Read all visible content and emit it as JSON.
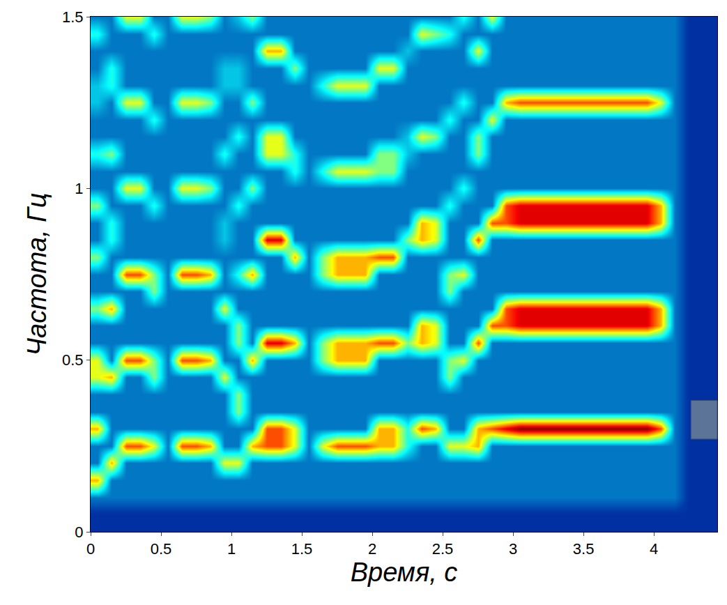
{
  "chart_data": {
    "type": "heatmap",
    "x_label": "Время, с",
    "y_label": "Частота, Гц",
    "xlim": [
      0,
      4.45
    ],
    "ylim": [
      0,
      1.5
    ],
    "xticks": [
      0,
      0.5,
      1,
      1.5,
      2,
      2.5,
      3,
      3.5,
      4
    ],
    "yticks": [
      0,
      0.5,
      1,
      1.5
    ],
    "grid": false,
    "zlim": [
      0,
      10
    ],
    "x": [
      0.05,
      0.15,
      0.25,
      0.35,
      0.45,
      0.55,
      0.65,
      0.75,
      0.85,
      0.95,
      1.05,
      1.15,
      1.25,
      1.35,
      1.45,
      1.55,
      1.65,
      1.75,
      1.85,
      1.95,
      2.05,
      2.15,
      2.25,
      2.35,
      2.45,
      2.55,
      2.65,
      2.75,
      2.85,
      2.95,
      3.05,
      3.15,
      3.25,
      3.35,
      3.45,
      3.55,
      3.65,
      3.75,
      3.85,
      3.95,
      4.05,
      4.15,
      4.25,
      4.35,
      4.45
    ],
    "y": [
      0,
      0.05,
      0.1,
      0.15,
      0.2,
      0.25,
      0.3,
      0.35,
      0.4,
      0.45,
      0.5,
      0.55,
      0.6,
      0.65,
      0.7,
      0.75,
      0.8,
      0.85,
      0.9,
      0.95,
      1,
      1.05,
      1.1,
      1.15,
      1.2,
      1.25,
      1.3,
      1.35,
      1.4,
      1.45,
      1.5
    ],
    "z": [
      [
        1,
        1,
        2,
        7,
        2,
        2,
        7,
        2,
        2,
        6,
        6,
        2,
        2,
        5,
        2,
        2,
        5,
        2,
        2,
        5,
        2,
        2,
        4,
        2,
        2,
        3,
        3,
        2,
        2,
        4,
        2
      ],
      [
        1,
        1,
        2,
        2,
        7,
        2,
        2,
        2,
        2,
        7,
        2,
        2,
        2,
        7,
        2,
        2,
        2,
        4,
        4,
        2,
        2,
        2,
        5,
        2,
        2,
        2,
        4,
        4,
        2,
        2,
        2
      ],
      [
        1,
        1,
        2,
        2,
        2,
        8,
        2,
        2,
        2,
        2,
        8,
        2,
        2,
        2,
        2,
        8,
        2,
        2,
        2,
        2,
        6,
        2,
        2,
        2,
        2,
        6,
        2,
        2,
        2,
        2,
        6
      ],
      [
        1,
        1,
        2,
        2,
        2,
        8,
        2,
        2,
        2,
        2,
        8,
        2,
        2,
        2,
        2,
        8,
        2,
        2,
        2,
        2,
        6,
        2,
        2,
        2,
        2,
        6,
        2,
        2,
        2,
        2,
        6
      ],
      [
        1,
        1,
        2,
        2,
        2,
        6,
        2,
        2,
        2,
        5,
        5,
        2,
        2,
        2,
        5,
        5,
        2,
        2,
        2,
        4,
        2,
        2,
        2,
        2,
        4,
        2,
        2,
        2,
        2,
        4,
        2
      ],
      [
        1,
        1,
        2,
        2,
        2,
        2,
        2,
        2,
        2,
        2,
        2,
        2,
        2,
        2,
        2,
        2,
        2,
        2,
        2,
        2,
        2,
        2,
        2,
        2,
        2,
        2,
        2,
        2,
        2,
        2,
        2
      ],
      [
        1,
        1,
        2,
        2,
        2,
        8,
        2,
        2,
        2,
        2,
        8,
        2,
        2,
        2,
        2,
        8,
        2,
        2,
        2,
        2,
        6,
        2,
        2,
        2,
        2,
        6,
        2,
        2,
        2,
        2,
        6
      ],
      [
        1,
        1,
        2,
        2,
        2,
        8,
        2,
        2,
        2,
        2,
        8,
        2,
        2,
        2,
        2,
        8,
        2,
        2,
        2,
        2,
        6,
        2,
        2,
        2,
        2,
        6,
        2,
        2,
        2,
        2,
        6
      ],
      [
        1,
        1,
        2,
        2,
        2,
        7,
        2,
        2,
        2,
        2,
        7,
        2,
        2,
        2,
        2,
        7,
        2,
        2,
        2,
        2,
        5,
        2,
        2,
        2,
        2,
        5,
        2,
        2,
        2,
        2,
        5
      ],
      [
        1,
        1,
        2,
        2,
        6,
        2,
        2,
        2,
        2,
        6,
        2,
        2,
        2,
        6,
        2,
        2,
        2,
        3,
        3,
        2,
        2,
        2,
        4,
        2,
        2,
        2,
        3,
        3,
        2,
        2,
        2
      ],
      [
        1,
        1,
        2,
        2,
        6,
        2,
        2,
        5,
        5,
        2,
        2,
        5,
        5,
        2,
        2,
        4,
        2,
        2,
        2,
        4,
        2,
        2,
        2,
        4,
        2,
        2,
        3,
        3,
        2,
        2,
        3
      ],
      [
        1,
        1,
        2,
        2,
        2,
        7,
        2,
        2,
        2,
        2,
        7,
        2,
        2,
        2,
        2,
        7,
        2,
        2,
        2,
        2,
        5,
        2,
        2,
        2,
        2,
        5,
        2,
        2,
        2,
        2,
        5
      ],
      [
        1,
        1,
        2,
        2,
        2,
        8,
        8,
        2,
        2,
        2,
        2,
        9,
        2,
        2,
        2,
        2,
        2,
        9,
        2,
        2,
        2,
        2,
        6,
        6,
        2,
        2,
        2,
        2,
        7,
        2,
        2
      ],
      [
        1,
        1,
        2,
        2,
        2,
        8,
        8,
        2,
        2,
        2,
        2,
        9,
        2,
        2,
        2,
        2,
        2,
        9,
        2,
        2,
        2,
        2,
        6,
        6,
        2,
        2,
        2,
        2,
        7,
        2,
        2
      ],
      [
        1,
        1,
        2,
        2,
        2,
        6,
        6,
        2,
        2,
        2,
        2,
        7,
        2,
        2,
        2,
        2,
        7,
        2,
        2,
        2,
        2,
        4,
        4,
        2,
        2,
        2,
        2,
        5,
        2,
        2,
        2
      ],
      [
        1,
        1,
        2,
        2,
        2,
        2,
        2,
        2,
        2,
        2,
        2,
        2,
        2,
        2,
        2,
        2,
        2,
        2,
        2,
        2,
        2,
        2,
        2,
        2,
        2,
        2,
        2,
        2,
        2,
        2,
        2
      ],
      [
        1,
        1,
        2,
        2,
        2,
        6,
        2,
        2,
        2,
        2,
        5,
        5,
        2,
        2,
        2,
        5,
        5,
        2,
        2,
        2,
        2,
        4,
        2,
        2,
        2,
        2,
        4,
        2,
        2,
        2,
        2
      ],
      [
        1,
        1,
        2,
        2,
        2,
        8,
        2,
        2,
        2,
        2,
        7,
        7,
        2,
        2,
        2,
        7,
        7,
        2,
        2,
        2,
        2,
        6,
        2,
        2,
        2,
        2,
        6,
        2,
        2,
        2,
        2
      ],
      [
        1,
        1,
        2,
        2,
        2,
        8,
        2,
        2,
        2,
        2,
        7,
        7,
        2,
        2,
        2,
        7,
        7,
        2,
        2,
        2,
        2,
        6,
        2,
        2,
        2,
        2,
        6,
        2,
        2,
        2,
        2
      ],
      [
        1,
        1,
        2,
        2,
        2,
        8,
        2,
        2,
        2,
        2,
        7,
        7,
        2,
        2,
        2,
        7,
        7,
        2,
        2,
        2,
        2,
        6,
        2,
        2,
        2,
        2,
        6,
        2,
        2,
        2,
        2
      ],
      [
        1,
        1,
        2,
        2,
        2,
        7,
        7,
        2,
        2,
        2,
        2,
        8,
        2,
        2,
        2,
        2,
        8,
        2,
        2,
        2,
        2,
        5,
        5,
        2,
        2,
        2,
        2,
        6,
        2,
        2,
        2
      ],
      [
        1,
        1,
        2,
        2,
        2,
        7,
        7,
        2,
        2,
        2,
        2,
        8,
        2,
        2,
        2,
        2,
        8,
        2,
        2,
        2,
        2,
        5,
        5,
        2,
        2,
        2,
        2,
        6,
        2,
        2,
        2
      ],
      [
        1,
        1,
        2,
        2,
        2,
        4,
        4,
        2,
        2,
        2,
        2,
        5,
        2,
        2,
        2,
        2,
        2,
        5,
        2,
        2,
        2,
        2,
        3,
        3,
        2,
        2,
        2,
        2,
        3,
        2,
        2
      ],
      [
        1,
        1,
        2,
        2,
        2,
        2,
        8,
        2,
        2,
        2,
        2,
        7,
        7,
        2,
        2,
        2,
        2,
        7,
        7,
        2,
        2,
        2,
        2,
        6,
        2,
        2,
        2,
        2,
        2,
        6,
        2
      ],
      [
        1,
        1,
        2,
        2,
        2,
        2,
        7,
        2,
        2,
        2,
        2,
        6,
        6,
        2,
        2,
        2,
        2,
        6,
        6,
        2,
        2,
        2,
        2,
        5,
        2,
        2,
        2,
        2,
        2,
        5,
        2
      ],
      [
        1,
        1,
        2,
        2,
        2,
        6,
        2,
        2,
        2,
        5,
        5,
        2,
        2,
        2,
        5,
        5,
        2,
        2,
        2,
        4,
        2,
        2,
        2,
        2,
        4,
        2,
        2,
        2,
        2,
        4,
        2
      ],
      [
        1,
        1,
        2,
        2,
        2,
        6,
        2,
        2,
        2,
        2,
        6,
        2,
        2,
        2,
        2,
        6,
        2,
        2,
        2,
        2,
        4,
        2,
        2,
        2,
        2,
        4,
        2,
        2,
        2,
        2,
        4
      ],
      [
        1,
        1,
        2,
        2,
        2,
        7,
        7,
        2,
        2,
        2,
        2,
        8,
        2,
        2,
        2,
        2,
        2,
        8,
        2,
        2,
        2,
        2,
        5,
        5,
        2,
        2,
        2,
        2,
        6,
        2,
        2
      ],
      [
        1,
        1,
        2,
        2,
        2,
        2,
        8,
        2,
        2,
        2,
        2,
        2,
        8,
        2,
        2,
        2,
        2,
        2,
        8,
        2,
        2,
        2,
        2,
        2,
        6,
        2,
        2,
        2,
        2,
        2,
        6
      ],
      [
        1,
        1,
        2,
        2,
        2,
        2,
        9,
        2,
        2,
        2,
        2,
        2,
        8,
        8,
        2,
        2,
        2,
        2,
        8,
        8,
        2,
        2,
        2,
        2,
        2,
        7,
        2,
        2,
        2,
        2,
        2
      ],
      [
        1,
        1,
        2,
        2,
        2,
        2,
        10,
        2,
        2,
        2,
        2,
        2,
        9,
        9,
        2,
        2,
        2,
        2,
        9,
        9,
        2,
        2,
        2,
        2,
        2,
        8,
        2,
        2,
        2,
        2,
        2
      ],
      [
        1,
        1,
        2,
        2,
        2,
        2,
        10,
        2,
        2,
        2,
        2,
        2,
        9,
        9,
        2,
        2,
        2,
        2,
        9,
        9,
        2,
        2,
        2,
        2,
        2,
        8,
        2,
        2,
        2,
        2,
        2
      ],
      [
        1,
        1,
        2,
        2,
        2,
        2,
        10,
        2,
        2,
        2,
        2,
        2,
        9,
        9,
        2,
        2,
        2,
        2,
        9,
        9,
        2,
        2,
        2,
        2,
        2,
        8,
        2,
        2,
        2,
        2,
        2
      ],
      [
        1,
        1,
        2,
        2,
        2,
        2,
        10,
        2,
        2,
        2,
        2,
        2,
        9,
        9,
        2,
        2,
        2,
        2,
        9,
        9,
        2,
        2,
        2,
        2,
        2,
        8,
        2,
        2,
        2,
        2,
        2
      ],
      [
        1,
        1,
        2,
        2,
        2,
        2,
        10,
        2,
        2,
        2,
        2,
        2,
        9,
        9,
        2,
        2,
        2,
        2,
        9,
        9,
        2,
        2,
        2,
        2,
        2,
        8,
        2,
        2,
        2,
        2,
        2
      ],
      [
        1,
        1,
        2,
        2,
        2,
        2,
        10,
        2,
        2,
        2,
        2,
        2,
        9,
        9,
        2,
        2,
        2,
        2,
        9,
        9,
        2,
        2,
        2,
        2,
        2,
        8,
        2,
        2,
        2,
        2,
        2
      ],
      [
        1,
        1,
        2,
        2,
        2,
        2,
        10,
        2,
        2,
        2,
        2,
        2,
        9,
        9,
        2,
        2,
        2,
        2,
        9,
        9,
        2,
        2,
        2,
        2,
        2,
        8,
        2,
        2,
        2,
        2,
        2
      ],
      [
        1,
        1,
        2,
        2,
        2,
        2,
        10,
        2,
        2,
        2,
        2,
        2,
        9,
        9,
        2,
        2,
        2,
        2,
        9,
        9,
        2,
        2,
        2,
        2,
        2,
        8,
        2,
        2,
        2,
        2,
        2
      ],
      [
        1,
        1,
        2,
        2,
        2,
        2,
        10,
        2,
        2,
        2,
        2,
        2,
        9,
        9,
        2,
        2,
        2,
        2,
        9,
        9,
        2,
        2,
        2,
        2,
        2,
        8,
        2,
        2,
        2,
        2,
        2
      ],
      [
        1,
        1,
        2,
        2,
        2,
        2,
        10,
        2,
        2,
        2,
        2,
        2,
        9,
        9,
        2,
        2,
        2,
        2,
        9,
        9,
        2,
        2,
        2,
        2,
        2,
        8,
        2,
        2,
        2,
        2,
        2
      ],
      [
        1,
        1,
        2,
        2,
        2,
        2,
        8,
        2,
        2,
        2,
        2,
        2,
        7,
        7,
        2,
        2,
        2,
        2,
        7,
        7,
        2,
        2,
        2,
        2,
        2,
        6,
        2,
        2,
        2,
        2,
        2
      ],
      [
        1,
        1,
        2,
        2,
        2,
        2,
        2,
        2,
        2,
        2,
        2,
        2,
        2,
        2,
        2,
        2,
        2,
        2,
        2,
        2,
        2,
        2,
        2,
        2,
        2,
        2,
        2,
        2,
        2,
        2,
        2
      ],
      [
        1,
        1,
        1,
        1,
        1,
        1,
        1,
        1,
        1,
        1,
        1,
        1,
        1,
        1,
        1,
        1,
        1,
        1,
        1,
        1,
        1,
        1,
        1,
        1,
        1,
        1,
        1,
        1,
        1,
        1,
        1
      ],
      [
        1,
        1,
        1,
        1,
        1,
        1,
        1,
        1,
        1,
        1,
        1,
        1,
        1,
        1,
        1,
        1,
        1,
        1,
        1,
        1,
        1,
        1,
        1,
        1,
        1,
        1,
        1,
        1,
        1,
        1,
        1
      ],
      [
        1,
        1,
        1,
        1,
        1,
        1,
        1,
        1,
        1,
        1,
        1,
        1,
        1,
        1,
        1,
        1,
        1,
        1,
        1,
        1,
        1,
        1,
        1,
        1,
        1,
        1,
        1,
        1,
        1,
        1,
        1
      ]
    ]
  }
}
